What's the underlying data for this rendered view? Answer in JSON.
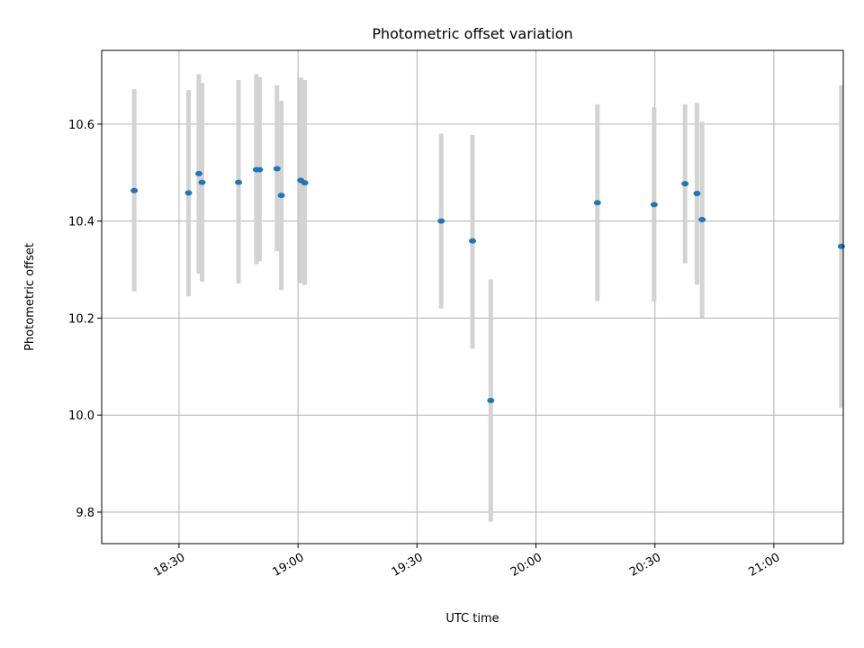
{
  "chart_data": {
    "type": "scatter",
    "title": "Photometric offset variation",
    "xlabel": "UTC time",
    "ylabel": "Photometric offset",
    "xlim_minutes": [
      1090.5,
      1277.5
    ],
    "ylim": [
      9.735,
      10.752
    ],
    "x_ticks": [
      {
        "minutes": 1110,
        "label": "18:30"
      },
      {
        "minutes": 1140,
        "label": "19:00"
      },
      {
        "minutes": 1170,
        "label": "19:30"
      },
      {
        "minutes": 1200,
        "label": "20:00"
      },
      {
        "minutes": 1230,
        "label": "20:30"
      },
      {
        "minutes": 1260,
        "label": "21:00"
      }
    ],
    "y_ticks": [
      {
        "value": 9.8,
        "label": "9.8"
      },
      {
        "value": 10.0,
        "label": "10.0"
      },
      {
        "value": 10.2,
        "label": "10.2"
      },
      {
        "value": 10.4,
        "label": "10.4"
      },
      {
        "value": 10.6,
        "label": "10.6"
      }
    ],
    "grid": true,
    "marker_color": "#1f77b4",
    "errorbar_color": "#d3d3d3",
    "points": [
      {
        "minutes": 1098.7,
        "y": 10.463,
        "lo": 10.255,
        "hi": 10.672
      },
      {
        "minutes": 1112.4,
        "y": 10.458,
        "lo": 10.245,
        "hi": 10.67
      },
      {
        "minutes": 1115.0,
        "y": 10.498,
        "lo": 10.292,
        "hi": 10.703
      },
      {
        "minutes": 1115.8,
        "y": 10.48,
        "lo": 10.275,
        "hi": 10.685
      },
      {
        "minutes": 1125.0,
        "y": 10.48,
        "lo": 10.271,
        "hi": 10.691
      },
      {
        "minutes": 1129.5,
        "y": 10.506,
        "lo": 10.311,
        "hi": 10.703
      },
      {
        "minutes": 1130.3,
        "y": 10.506,
        "lo": 10.317,
        "hi": 10.697
      },
      {
        "minutes": 1134.7,
        "y": 10.508,
        "lo": 10.338,
        "hi": 10.68
      },
      {
        "minutes": 1135.8,
        "y": 10.453,
        "lo": 10.258,
        "hi": 10.648
      },
      {
        "minutes": 1140.7,
        "y": 10.484,
        "lo": 10.272,
        "hi": 10.696
      },
      {
        "minutes": 1141.7,
        "y": 10.479,
        "lo": 10.268,
        "hi": 10.691
      },
      {
        "minutes": 1176.1,
        "y": 10.4,
        "lo": 10.22,
        "hi": 10.58
      },
      {
        "minutes": 1184.0,
        "y": 10.359,
        "lo": 10.137,
        "hi": 10.578
      },
      {
        "minutes": 1188.6,
        "y": 10.03,
        "lo": 9.78,
        "hi": 10.28
      },
      {
        "minutes": 1215.5,
        "y": 10.438,
        "lo": 10.235,
        "hi": 10.641
      },
      {
        "minutes": 1229.8,
        "y": 10.434,
        "lo": 10.234,
        "hi": 10.635
      },
      {
        "minutes": 1237.6,
        "y": 10.477,
        "lo": 10.313,
        "hi": 10.641
      },
      {
        "minutes": 1240.6,
        "y": 10.457,
        "lo": 10.269,
        "hi": 10.644
      },
      {
        "minutes": 1241.9,
        "y": 10.403,
        "lo": 10.201,
        "hi": 10.605
      },
      {
        "minutes": 1277.0,
        "y": 10.348,
        "lo": 10.015,
        "hi": 10.68
      }
    ]
  }
}
